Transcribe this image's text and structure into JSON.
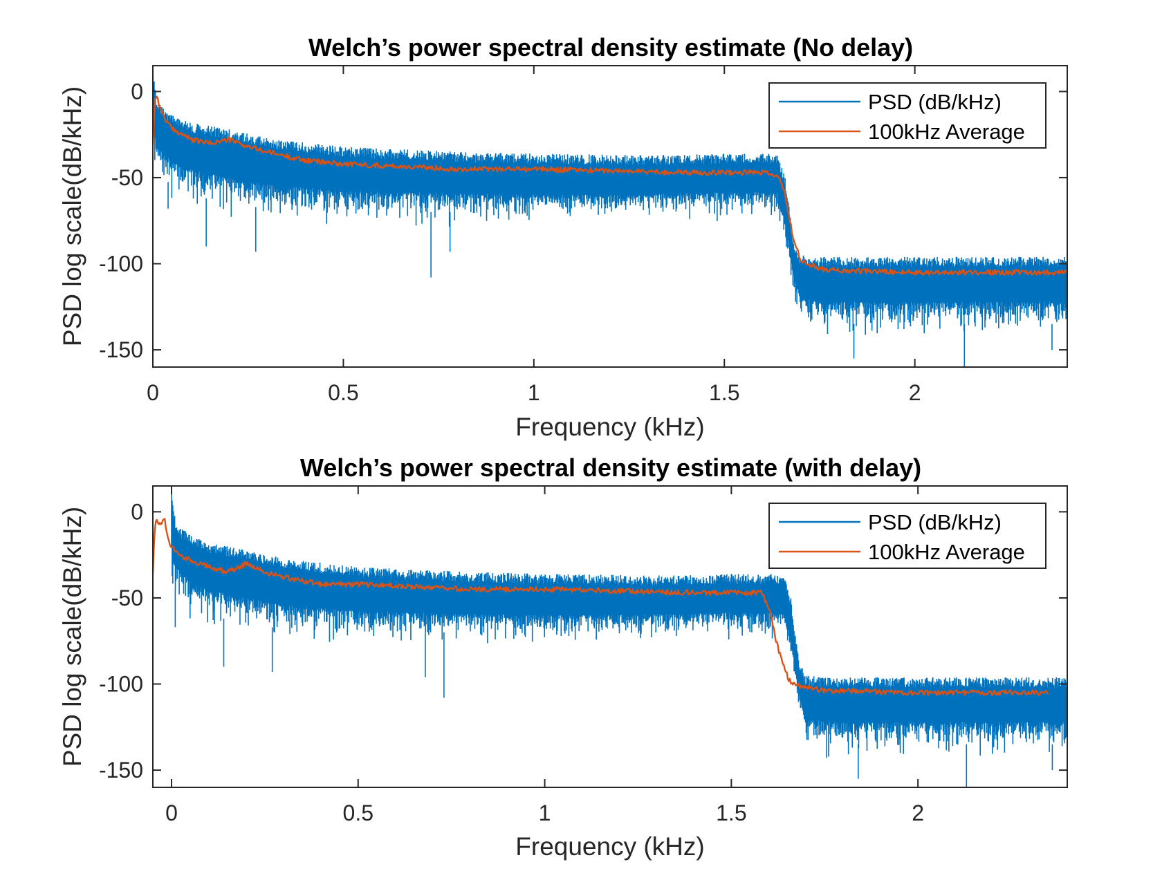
{
  "colors": {
    "psd": "#0072BD",
    "average": "#D95319",
    "axis": "#262626"
  },
  "chart_data": [
    {
      "type": "line",
      "title": "Welch’s power spectral density estimate (No delay)",
      "xlabel": "Frequency (kHz)",
      "ylabel": "PSD log scale(dB/kHz)",
      "xlim": [
        0,
        2.4
      ],
      "ylim": [
        -160,
        15
      ],
      "xticks": [
        0,
        0.5,
        1,
        1.5,
        2
      ],
      "xtick_labels": [
        "0",
        "0.5",
        "1",
        "1.5",
        "2"
      ],
      "yticks": [
        0,
        -50,
        -100,
        -150
      ],
      "ytick_labels": [
        "0",
        "-50",
        "-100",
        "-150"
      ],
      "grid": false,
      "legend": {
        "location": "top-right",
        "entries": [
          "PSD (dB/kHz)",
          "100kHz Average"
        ]
      },
      "series": [
        {
          "name": "PSD (dB/kHz)",
          "style": "band",
          "x": [
            0,
            0.01,
            0.03,
            0.05,
            0.1,
            0.2,
            0.3,
            0.5,
            0.8,
            1.0,
            1.3,
            1.5,
            1.6,
            1.64,
            1.66,
            1.68,
            1.7,
            1.75,
            1.8,
            2.0,
            2.2,
            2.4
          ],
          "upper": [
            12,
            -5,
            -10,
            -13,
            -18,
            -22,
            -27,
            -32,
            -35,
            -36,
            -37,
            -36,
            -36,
            -36,
            -50,
            -85,
            -95,
            -96,
            -96,
            -96,
            -96,
            -96
          ],
          "lower": [
            -45,
            -55,
            -60,
            -65,
            -70,
            -75,
            -78,
            -80,
            -80,
            -80,
            -78,
            -77,
            -77,
            -78,
            -95,
            -120,
            -140,
            -145,
            -145,
            -145,
            -145,
            -145
          ],
          "deep_dips": [
            [
              0.04,
              -68
            ],
            [
              0.14,
              -90
            ],
            [
              0.27,
              -93
            ],
            [
              0.73,
              -108
            ],
            [
              0.78,
              -93
            ],
            [
              1.84,
              -155
            ],
            [
              2.13,
              -162
            ],
            [
              2.36,
              -150
            ]
          ]
        },
        {
          "name": "100kHz Average",
          "x": [
            0,
            0.005,
            0.01,
            0.02,
            0.03,
            0.05,
            0.08,
            0.1,
            0.15,
            0.2,
            0.25,
            0.3,
            0.4,
            0.5,
            0.6,
            0.8,
            1.0,
            1.2,
            1.4,
            1.6,
            1.64,
            1.66,
            1.68,
            1.7,
            1.72,
            1.75,
            1.8,
            2.0,
            2.2,
            2.4
          ],
          "y": [
            -30,
            -5,
            -2,
            -10,
            -15,
            -22,
            -25,
            -28,
            -30,
            -28,
            -32,
            -35,
            -40,
            -42,
            -43,
            -45,
            -45,
            -46,
            -47,
            -47,
            -49,
            -60,
            -85,
            -98,
            -100,
            -103,
            -104,
            -105,
            -105,
            -105
          ]
        }
      ]
    },
    {
      "type": "line",
      "title": "Welch’s power spectral density estimate (with delay)",
      "xlabel": "Frequency (kHz)",
      "ylabel": "PSD log scale(dB/kHz)",
      "xlim": [
        -0.05,
        2.4
      ],
      "ylim": [
        -160,
        15
      ],
      "xticks": [
        0,
        0.5,
        1,
        1.5,
        2
      ],
      "xtick_labels": [
        "0",
        "0.5",
        "1",
        "1.5",
        "2"
      ],
      "yticks": [
        0,
        -50,
        -100,
        -150
      ],
      "ytick_labels": [
        "0",
        "-50",
        "-100",
        "-150"
      ],
      "grid": false,
      "legend": {
        "location": "top-right",
        "entries": [
          "PSD (dB/kHz)",
          "100kHz Average"
        ]
      },
      "series": [
        {
          "name": "PSD (dB/kHz)",
          "style": "band",
          "x": [
            0,
            0.01,
            0.03,
            0.05,
            0.1,
            0.2,
            0.3,
            0.5,
            0.8,
            1.0,
            1.3,
            1.5,
            1.6,
            1.64,
            1.66,
            1.68,
            1.7,
            1.75,
            1.8,
            2.0,
            2.2,
            2.4
          ],
          "upper": [
            15,
            -5,
            -10,
            -13,
            -18,
            -22,
            -27,
            -32,
            -35,
            -36,
            -37,
            -36,
            -36,
            -36,
            -50,
            -85,
            -95,
            -96,
            -96,
            -96,
            -96,
            -96
          ],
          "lower": [
            -50,
            -55,
            -60,
            -65,
            -70,
            -75,
            -78,
            -80,
            -80,
            -80,
            -78,
            -77,
            -77,
            -78,
            -95,
            -120,
            -140,
            -145,
            -145,
            -145,
            -145,
            -145
          ],
          "deep_dips": [
            [
              0.01,
              -67
            ],
            [
              0.14,
              -90
            ],
            [
              0.27,
              -93
            ],
            [
              0.68,
              -96
            ],
            [
              0.73,
              -108
            ],
            [
              1.84,
              -155
            ],
            [
              2.13,
              -162
            ],
            [
              2.36,
              -150
            ]
          ]
        },
        {
          "name": "100kHz Average",
          "x": [
            -0.05,
            -0.045,
            -0.04,
            -0.03,
            -0.02,
            -0.01,
            0,
            0.02,
            0.05,
            0.1,
            0.15,
            0.2,
            0.25,
            0.3,
            0.4,
            0.5,
            0.6,
            0.8,
            1.0,
            1.2,
            1.4,
            1.55,
            1.58,
            1.6,
            1.62,
            1.64,
            1.66,
            1.7,
            1.75,
            1.8,
            2.0,
            2.2,
            2.35
          ],
          "y": [
            -35,
            -10,
            -5,
            -8,
            -3,
            -15,
            -20,
            -25,
            -28,
            -32,
            -35,
            -30,
            -35,
            -38,
            -42,
            -42,
            -43,
            -45,
            -45,
            -46,
            -47,
            -47,
            -47,
            -55,
            -75,
            -90,
            -100,
            -102,
            -104,
            -104,
            -105,
            -105,
            -105
          ]
        }
      ]
    }
  ]
}
